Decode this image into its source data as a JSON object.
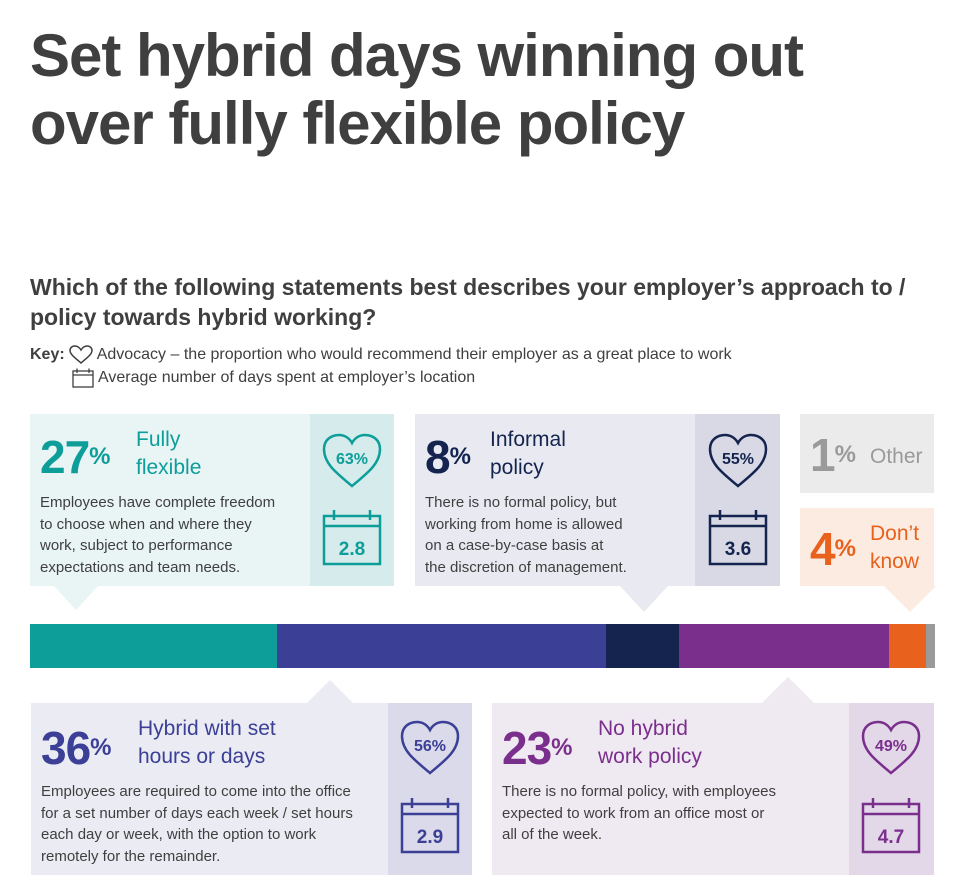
{
  "title": "Set hybrid days winning out over fully flexible policy",
  "question": "Which of the following statements best describes your employer’s approach to / policy towards hybrid working?",
  "key": {
    "label": "Key:",
    "advocacy": "Advocacy – the proportion who would recommend their employer as a great place to work",
    "days": "Average number of days spent at employer’s location"
  },
  "cards": {
    "fully_flexible": {
      "pct": "27",
      "pct_sign": "%",
      "label_1": "Fully",
      "label_2": "flexible",
      "desc_1": "Employees have complete freedom",
      "desc_2": "to choose when and where they",
      "desc_3": "work, subject to performance",
      "desc_4": "expectations and team needs.",
      "advocacy": "63%",
      "days": "2.8"
    },
    "informal": {
      "pct": "8",
      "pct_sign": "%",
      "label_1": "Informal",
      "label_2": "policy",
      "desc_1": "There is no formal policy, but",
      "desc_2": "working from home is allowed",
      "desc_3": "on a case-by-case basis at",
      "desc_4": "the discretion of management.",
      "advocacy": "55%",
      "days": "3.6"
    },
    "other": {
      "pct": "1",
      "pct_sign": "%",
      "label": "Other"
    },
    "dont_know": {
      "pct": "4",
      "pct_sign": "%",
      "label_1": "Don’t",
      "label_2": "know"
    },
    "hybrid_set": {
      "pct": "36",
      "pct_sign": "%",
      "label_1": "Hybrid with set",
      "label_2": "hours or days",
      "desc_1": "Employees are required to come into the office",
      "desc_2": "for a set number of days each week / set hours",
      "desc_3": "each day or week, with the option to work",
      "desc_4": "remotely for the remainder.",
      "advocacy": "56%",
      "days": "2.9"
    },
    "no_hybrid": {
      "pct": "23",
      "pct_sign": "%",
      "label_1": "No hybrid",
      "label_2": "work policy",
      "desc_1": "There is no formal policy, with employees",
      "desc_2": "expected to work from an office most or",
      "desc_3": "all of the week.",
      "advocacy": "49%",
      "days": "4.7"
    }
  },
  "colors": {
    "teal": "#0d9e9a",
    "indigo": "#3b3f95",
    "navy": "#14244f",
    "purple": "#7b2f8d",
    "orange": "#e8611d",
    "grey": "#9a9a9a"
  },
  "chart_data": {
    "type": "bar",
    "categories": [
      "Fully flexible",
      "Hybrid with set hours or days",
      "Informal policy",
      "No hybrid work policy",
      "Don’t know",
      "Other"
    ],
    "values": [
      27,
      36,
      8,
      23,
      4,
      1
    ],
    "advocacy": [
      63,
      56,
      55,
      49,
      null,
      null
    ],
    "avg_days": [
      2.8,
      2.9,
      3.6,
      4.7,
      null,
      null
    ],
    "title": "Which of the following statements best describes your employer’s approach to / policy towards hybrid working?",
    "xlabel": "",
    "ylabel": ""
  }
}
